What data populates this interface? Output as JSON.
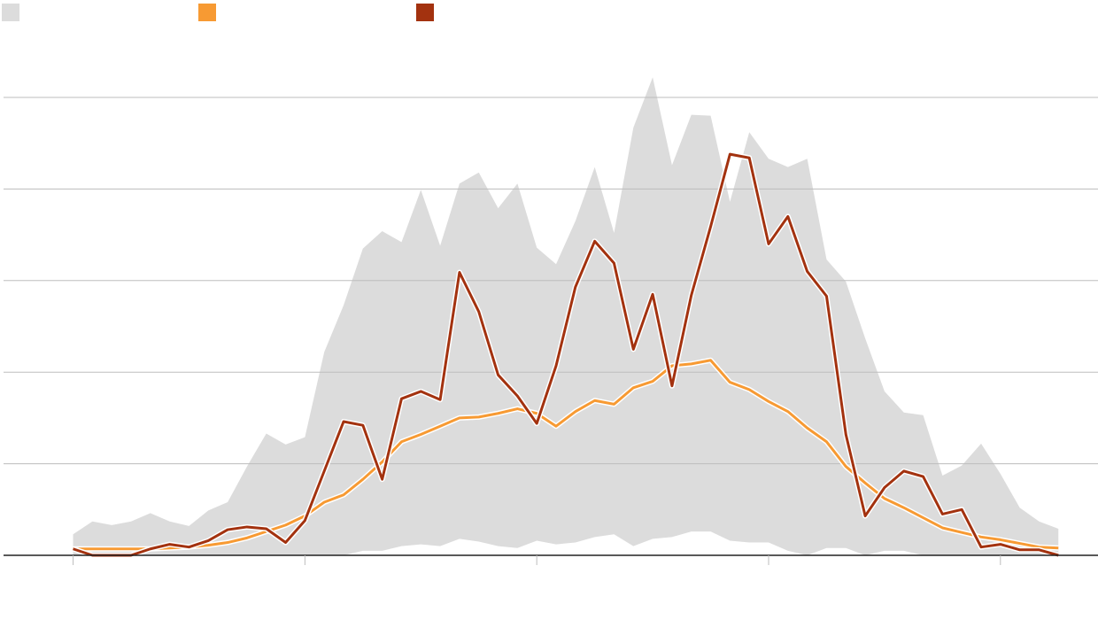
{
  "chart_data": {
    "type": "line",
    "x": [
      0,
      1,
      2,
      3,
      4,
      5,
      6,
      7,
      8,
      9,
      10,
      11,
      12,
      13,
      14,
      15,
      16,
      17,
      18,
      19,
      20,
      21,
      22,
      23,
      24,
      25,
      26,
      27,
      28,
      29,
      30,
      31,
      32,
      33,
      34,
      35,
      36,
      37,
      38,
      39,
      40,
      41,
      42,
      43,
      44,
      45,
      46,
      47,
      48,
      49,
      50,
      51
    ],
    "xlim": [
      -3.6,
      53.05
    ],
    "xticks": [
      0,
      12,
      24,
      36,
      48
    ],
    "ylim": [
      0,
      55
    ],
    "yticks": [
      0,
      10,
      20,
      30,
      40,
      50
    ],
    "grid": true,
    "band": {
      "color": "#dcdcdc",
      "high": [
        2.3,
        3.7,
        3.3,
        3.7,
        4.6,
        3.7,
        3.2,
        4.9,
        5.8,
        9.7,
        13.3,
        12.1,
        12.9,
        22.2,
        27.3,
        33.5,
        35.4,
        34.2,
        39.9,
        33.8,
        40.6,
        41.8,
        37.9,
        40.6,
        33.6,
        31.8,
        36.5,
        42.4,
        35.2,
        46.7,
        52.2,
        42.6,
        48.1,
        48.0,
        38.6,
        46.2,
        43.3,
        42.4,
        43.3,
        32.3,
        29.9,
        23.7,
        17.9,
        15.6,
        15.3,
        8.7,
        9.8,
        12.2,
        8.9,
        5.2,
        3.7,
        2.9
      ],
      "low": [
        0,
        0,
        0,
        0,
        0,
        0,
        0,
        0,
        0,
        0,
        0,
        0,
        0,
        0,
        0,
        0.5,
        0.5,
        1.0,
        1.2,
        1.0,
        1.8,
        1.5,
        1.0,
        0.8,
        1.6,
        1.2,
        1.4,
        2.0,
        2.3,
        1.0,
        1.8,
        2.0,
        2.6,
        2.6,
        1.6,
        1.4,
        1.4,
        0.5,
        0,
        0.8,
        0.8,
        0,
        0.5,
        0.5,
        0,
        0,
        0,
        0,
        0,
        0,
        0,
        0
      ]
    },
    "series": [
      {
        "color": "#f79a33",
        "values": [
          0.7,
          0.7,
          0.7,
          0.7,
          0.7,
          0.8,
          0.9,
          1.1,
          1.4,
          1.9,
          2.6,
          3.3,
          4.3,
          5.8,
          6.6,
          8.3,
          10.2,
          12.4,
          13.2,
          14.1,
          15.0,
          15.1,
          15.5,
          16.0,
          15.5,
          14.1,
          15.7,
          16.9,
          16.5,
          18.3,
          19.0,
          20.7,
          20.9,
          21.3,
          18.9,
          18.1,
          16.8,
          15.7,
          13.9,
          12.4,
          9.7,
          7.9,
          6.2,
          5.2,
          4.1,
          3.0,
          2.5,
          2.0,
          1.7,
          1.3,
          0.9,
          0.8
        ]
      },
      {
        "color": "#a3320f",
        "values": [
          0.7,
          0,
          0,
          0,
          0.7,
          1.2,
          0.9,
          1.6,
          2.8,
          3.1,
          2.9,
          1.4,
          3.8,
          9.2,
          14.6,
          14.2,
          8.3,
          17.1,
          17.9,
          17.0,
          30.9,
          26.6,
          19.7,
          17.4,
          14.4,
          20.7,
          29.3,
          34.3,
          31.9,
          22.5,
          28.5,
          18.5,
          28.4,
          35.9,
          43.8,
          43.4,
          34.0,
          37.0,
          31.0,
          28.3,
          13.2,
          4.3,
          7.4,
          9.2,
          8.6,
          4.5,
          5.0,
          0.9,
          1.2,
          0.6,
          0.6,
          0
        ]
      }
    ]
  }
}
